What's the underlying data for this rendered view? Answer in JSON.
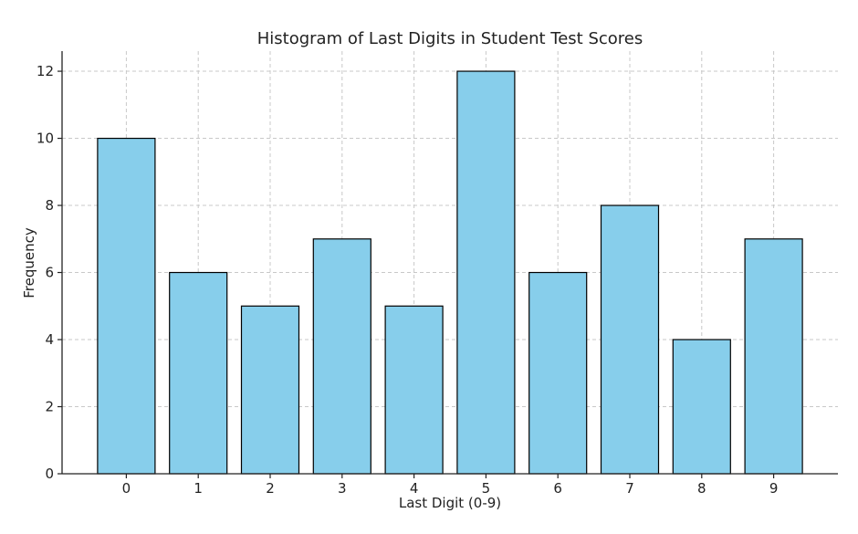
{
  "chart_data": {
    "type": "bar",
    "title": "Histogram of Last Digits in Student Test Scores",
    "xlabel": "Last Digit (0-9)",
    "ylabel": "Frequency",
    "categories": [
      "0",
      "1",
      "2",
      "3",
      "4",
      "5",
      "6",
      "7",
      "8",
      "9"
    ],
    "values": [
      10,
      6,
      5,
      7,
      5,
      12,
      6,
      8,
      4,
      7
    ],
    "ylim": [
      0,
      12.6
    ],
    "yticks": [
      "0",
      "2",
      "4",
      "6",
      "8",
      "10",
      "12"
    ],
    "grid": true,
    "bar_color": "#87ceeb",
    "edge_color": "#000000"
  }
}
